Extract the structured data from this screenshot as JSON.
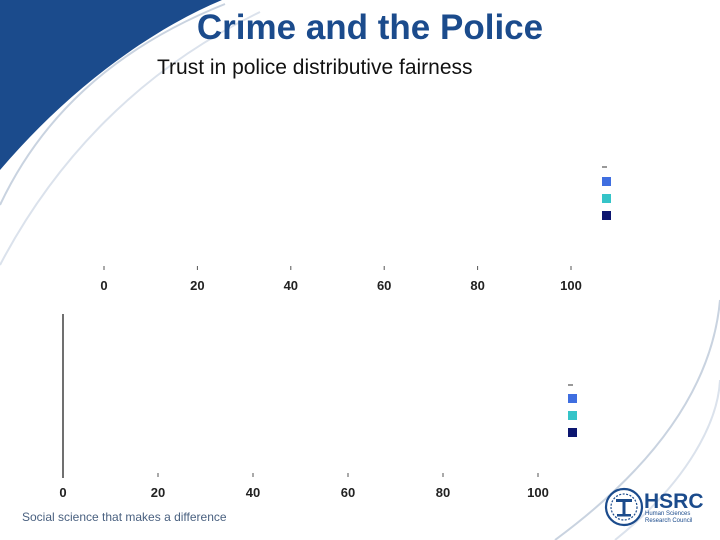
{
  "slide": {
    "title": "Crime and the Police",
    "subtitle": "Trust in police distributive fairness",
    "footer": "Social science that makes a difference"
  },
  "logo": {
    "name": "HSRC",
    "tagline_line1": "Human Sciences",
    "tagline_line2": "Research Council"
  },
  "colors": {
    "brand_blue": "#1b4b8c",
    "series_blue": "#3f6ee0",
    "series_teal": "#35c4c8",
    "series_navy": "#0c1670"
  },
  "chart_data": [
    {
      "type": "bar",
      "orientation": "horizontal",
      "xlim": [
        0,
        100
      ],
      "xticks": [
        "0",
        "20",
        "40",
        "60",
        "80",
        "100"
      ],
      "legend_placement": "right",
      "legend_markers": [
        "#3f6ee0",
        "#35c4c8",
        "#0c1670"
      ],
      "categories": [],
      "series": []
    },
    {
      "type": "bar",
      "orientation": "horizontal",
      "xlim": [
        0,
        100
      ],
      "xticks": [
        "0",
        "20",
        "40",
        "60",
        "80",
        "100"
      ],
      "legend_placement": "right",
      "legend_markers": [
        "#3f6ee0",
        "#35c4c8",
        "#0c1670"
      ],
      "categories": [],
      "series": []
    }
  ]
}
